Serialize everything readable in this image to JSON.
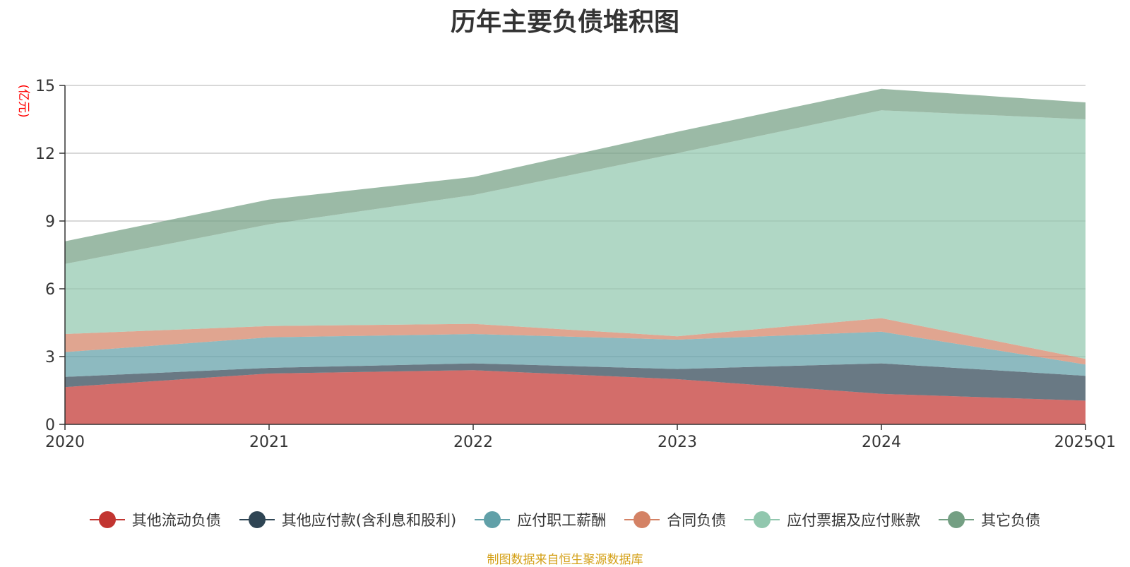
{
  "chart_data": {
    "type": "area",
    "stacked": true,
    "title": "历年主要负债堆积图",
    "ylabel": "(亿元)",
    "xlabel": "",
    "categories": [
      "2020",
      "2021",
      "2022",
      "2023",
      "2024",
      "2025Q1"
    ],
    "ylim": [
      0,
      15
    ],
    "yticks": [
      0,
      3,
      6,
      9,
      12,
      15
    ],
    "grid": true,
    "legend_position": "bottom",
    "series": [
      {
        "name": "其他流动负债",
        "values": [
          1.65,
          2.25,
          2.4,
          2.0,
          1.35,
          1.05
        ],
        "color": "#c23531"
      },
      {
        "name": "其他应付款(含利息和股利)",
        "values": [
          0.45,
          0.25,
          0.3,
          0.45,
          1.35,
          1.1
        ],
        "color": "#2f4554"
      },
      {
        "name": "应付职工薪酬",
        "values": [
          1.1,
          1.35,
          1.3,
          1.3,
          1.4,
          0.5
        ],
        "color": "#61a0a8"
      },
      {
        "name": "合同负债",
        "values": [
          0.8,
          0.5,
          0.45,
          0.15,
          0.6,
          0.25
        ],
        "color": "#d48265"
      },
      {
        "name": "应付票据及应付账款",
        "values": [
          3.1,
          4.5,
          5.7,
          8.1,
          9.2,
          10.6
        ],
        "color": "#91c7ae"
      },
      {
        "name": "其它负债",
        "values": [
          1.0,
          1.1,
          0.8,
          0.95,
          0.95,
          0.75
        ],
        "color": "#749f83"
      }
    ]
  },
  "source_note": "制图数据来自恒生聚源数据库"
}
